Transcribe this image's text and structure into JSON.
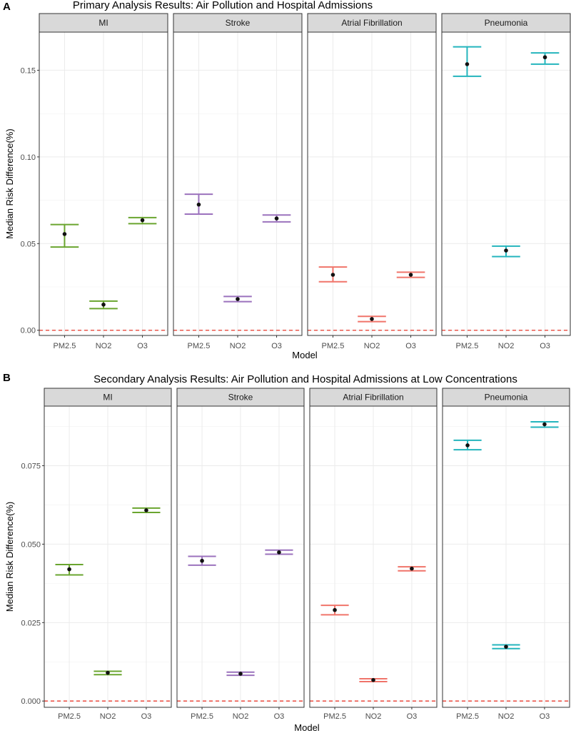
{
  "colors": {
    "MI": "#6aa52f",
    "Stroke": "#9b72bd",
    "Atrial Fibrillation": "#f0746a",
    "Pneumonia": "#24b5bd",
    "reference_line": "#e8392b",
    "strip_fill": "#d9d9d9",
    "grid": "#ebebeb"
  },
  "chart_data": [
    {
      "type": "errorbar",
      "tag": "A",
      "title": "Primary Analysis Results: Air Pollution and Hospital Admissions",
      "xlabel": "Model",
      "ylabel": "Median Risk Difference(%)",
      "ylim": [
        -0.003,
        0.172
      ],
      "yticks": [
        0.0,
        0.05,
        0.1,
        0.15
      ],
      "ytick_labels": [
        "0.00",
        "0.05",
        "0.10",
        "0.15"
      ],
      "reference_line": 0,
      "categories": [
        "PM2.5",
        "NO2",
        "O3"
      ],
      "facets": [
        {
          "name": "MI",
          "points": [
            {
              "x": "PM2.5",
              "y": 0.0555,
              "low": 0.048,
              "high": 0.061
            },
            {
              "x": "NO2",
              "y": 0.0148,
              "low": 0.0125,
              "high": 0.0168
            },
            {
              "x": "O3",
              "y": 0.0635,
              "low": 0.0615,
              "high": 0.065
            }
          ]
        },
        {
          "name": "Stroke",
          "points": [
            {
              "x": "PM2.5",
              "y": 0.0725,
              "low": 0.067,
              "high": 0.0785
            },
            {
              "x": "NO2",
              "y": 0.018,
              "low": 0.0165,
              "high": 0.0195
            },
            {
              "x": "O3",
              "y": 0.0645,
              "low": 0.0625,
              "high": 0.0665
            }
          ]
        },
        {
          "name": "Atrial Fibrillation",
          "points": [
            {
              "x": "PM2.5",
              "y": 0.032,
              "low": 0.028,
              "high": 0.0365
            },
            {
              "x": "NO2",
              "y": 0.0065,
              "low": 0.005,
              "high": 0.008
            },
            {
              "x": "O3",
              "y": 0.032,
              "low": 0.0305,
              "high": 0.0335
            }
          ]
        },
        {
          "name": "Pneumonia",
          "points": [
            {
              "x": "PM2.5",
              "y": 0.1535,
              "low": 0.1465,
              "high": 0.1635
            },
            {
              "x": "NO2",
              "y": 0.046,
              "low": 0.0425,
              "high": 0.0485
            },
            {
              "x": "O3",
              "y": 0.1575,
              "low": 0.1535,
              "high": 0.16
            }
          ]
        }
      ]
    },
    {
      "type": "errorbar",
      "tag": "B",
      "title": "Secondary Analysis Results: Air Pollution and Hospital Admissions at Low Concentrations",
      "xlabel": "Model",
      "ylabel": "Median Risk Difference(%)",
      "ylim": [
        -0.002,
        0.094
      ],
      "yticks": [
        0.0,
        0.025,
        0.05,
        0.075
      ],
      "ytick_labels": [
        "0.000",
        "0.025",
        "0.050",
        "0.075"
      ],
      "reference_line": 0,
      "categories": [
        "PM2.5",
        "NO2",
        "O3"
      ],
      "facets": [
        {
          "name": "MI",
          "points": [
            {
              "x": "PM2.5",
              "y": 0.042,
              "low": 0.0402,
              "high": 0.0435
            },
            {
              "x": "NO2",
              "y": 0.009,
              "low": 0.0084,
              "high": 0.0095
            },
            {
              "x": "O3",
              "y": 0.0608,
              "low": 0.0601,
              "high": 0.0615
            }
          ]
        },
        {
          "name": "Stroke",
          "points": [
            {
              "x": "PM2.5",
              "y": 0.0447,
              "low": 0.0433,
              "high": 0.0461
            },
            {
              "x": "NO2",
              "y": 0.0087,
              "low": 0.0082,
              "high": 0.0092
            },
            {
              "x": "O3",
              "y": 0.0474,
              "low": 0.0468,
              "high": 0.0481
            }
          ]
        },
        {
          "name": "Atrial Fibrillation",
          "points": [
            {
              "x": "PM2.5",
              "y": 0.029,
              "low": 0.0275,
              "high": 0.0305
            },
            {
              "x": "NO2",
              "y": 0.0067,
              "low": 0.0062,
              "high": 0.0071
            },
            {
              "x": "O3",
              "y": 0.0422,
              "low": 0.0415,
              "high": 0.0428
            }
          ]
        },
        {
          "name": "Pneumonia",
          "points": [
            {
              "x": "PM2.5",
              "y": 0.0815,
              "low": 0.0801,
              "high": 0.0831
            },
            {
              "x": "NO2",
              "y": 0.0173,
              "low": 0.0167,
              "high": 0.0179
            },
            {
              "x": "O3",
              "y": 0.0882,
              "low": 0.0873,
              "high": 0.089
            }
          ]
        }
      ]
    }
  ]
}
